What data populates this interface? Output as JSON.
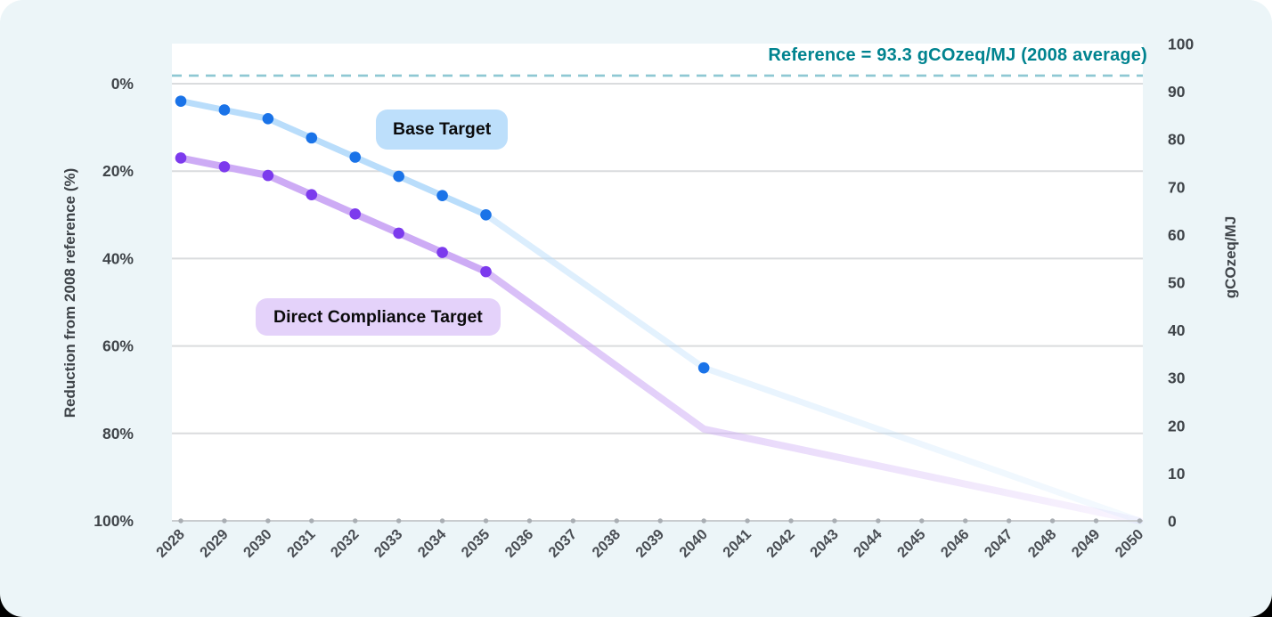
{
  "card": {
    "background": "#ECF5F8"
  },
  "chart_data": {
    "type": "line",
    "title": "",
    "reference_line": {
      "label": "Reference = 93.3 gCOzeq/MJ (2008 average)",
      "value_gcozeq_mj": 93.3,
      "style": "dashed",
      "text_color": "#00838F",
      "line_color": "#8EC8D3"
    },
    "x_axis": {
      "years": [
        2028,
        2029,
        2030,
        2031,
        2032,
        2033,
        2034,
        2035,
        2036,
        2037,
        2038,
        2039,
        2040,
        2041,
        2042,
        2043,
        2044,
        2045,
        2046,
        2047,
        2048,
        2049,
        2050
      ]
    },
    "left_axis": {
      "label": "Reduction from 2008 reference (%)",
      "tick_values": [
        0,
        20,
        40,
        60,
        80,
        100
      ],
      "tick_labels": [
        "0%",
        "20%",
        "40%",
        "60%",
        "80%",
        "100%"
      ],
      "direction": "inverted",
      "range": [
        0,
        100
      ]
    },
    "right_axis": {
      "label": "gCOzeq/MJ",
      "tick_values": [
        0,
        10,
        20,
        30,
        40,
        50,
        60,
        70,
        80,
        90,
        100
      ],
      "range": [
        0,
        100
      ]
    },
    "grid": "horizontal",
    "series": [
      {
        "name": "Direct Compliance Target",
        "chip": {
          "text": "Direct Compliance Target",
          "bg": "#E4D2FA"
        },
        "line_color": "#CDABF5",
        "marker_color": "#7C3AED",
        "unit": "% reduction from 2008 reference",
        "points": [
          [
            2028,
            17
          ],
          [
            2029,
            19
          ],
          [
            2030,
            21
          ],
          [
            2031,
            25.4
          ],
          [
            2032,
            29.8
          ],
          [
            2033,
            34.2
          ],
          [
            2034,
            38.6
          ],
          [
            2035,
            43
          ]
        ],
        "projection": [
          [
            2035,
            43
          ],
          [
            2040,
            79
          ],
          [
            2050,
            100
          ]
        ],
        "projection_markers": []
      },
      {
        "name": "Base Target",
        "chip": {
          "text": "Base Target",
          "bg": "#BDDFFB"
        },
        "line_color": "#B9DDFB",
        "marker_color": "#1A73E8",
        "unit": "% reduction from 2008 reference",
        "points": [
          [
            2028,
            4
          ],
          [
            2029,
            6
          ],
          [
            2030,
            8
          ],
          [
            2031,
            12.4
          ],
          [
            2032,
            16.8
          ],
          [
            2033,
            21.2
          ],
          [
            2034,
            25.6
          ],
          [
            2035,
            30
          ]
        ],
        "projection": [
          [
            2035,
            30
          ],
          [
            2040,
            65
          ],
          [
            2050,
            100
          ]
        ],
        "projection_markers": [
          [
            2040,
            65
          ]
        ]
      }
    ]
  }
}
